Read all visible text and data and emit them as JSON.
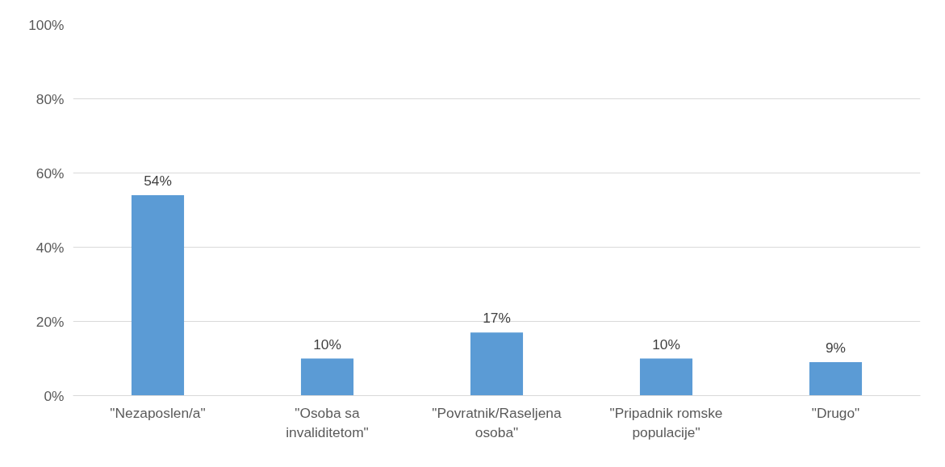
{
  "chart_data": {
    "type": "bar",
    "categories": [
      "\"Nezaposlen/a\"",
      "\"Osoba sa invaliditetom\"",
      "\"Povratnik/Raseljena osoba\"",
      "\"Pripadnik romske populacije\"",
      "\"Drugo\""
    ],
    "values": [
      54,
      10,
      17,
      10,
      9
    ],
    "color": "#5b9bd5",
    "value_labels": [
      "54%",
      "10%",
      "17%",
      "10%",
      "9%"
    ],
    "ylim": [
      0,
      100
    ],
    "yticks": [
      {
        "value": 0,
        "label": "0%"
      },
      {
        "value": 20,
        "label": "20%"
      },
      {
        "value": 40,
        "label": "40%"
      },
      {
        "value": 60,
        "label": "60%"
      },
      {
        "value": 80,
        "label": "80%"
      },
      {
        "value": 100,
        "label": "100%"
      }
    ],
    "grid": "y"
  }
}
